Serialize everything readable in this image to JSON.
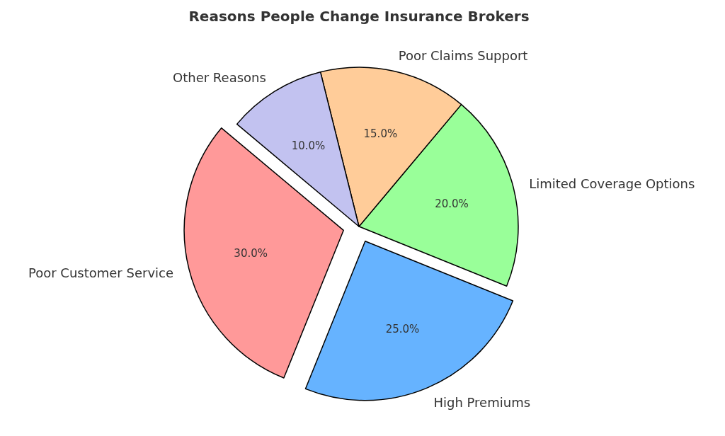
{
  "chart_data": {
    "type": "pie",
    "title": "Reasons People Change Insurance Brokers",
    "categories": [
      "Poor Customer Service",
      "High Premiums",
      "Limited Coverage Options",
      "Poor Claims Support",
      "Other Reasons"
    ],
    "values": [
      30,
      25,
      20,
      15,
      10
    ],
    "value_labels": [
      "30.0%",
      "25.0%",
      "20.0%",
      "15.0%",
      "10.0%"
    ],
    "colors": [
      "#ff9999",
      "#66b3ff",
      "#99ff99",
      "#ffcc99",
      "#c2c2f0"
    ]
  }
}
